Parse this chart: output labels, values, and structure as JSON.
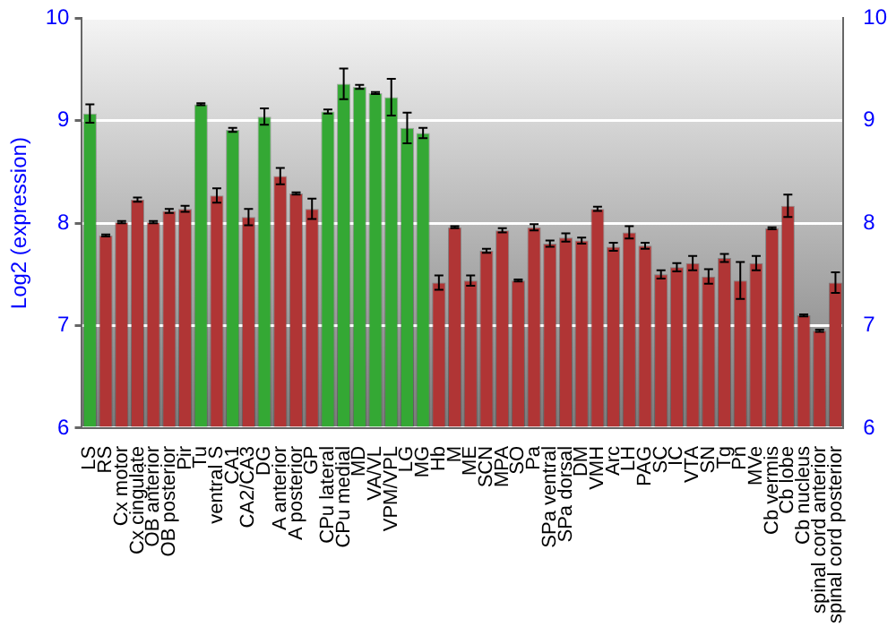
{
  "chart_data": {
    "type": "bar",
    "ylabel": "Log2 (expression)",
    "categories": [
      "LS",
      "RS",
      "Cx motor",
      "Cx cingulate",
      "OB anterior",
      "OB posterior",
      "Pir",
      "Tu",
      "ventral S",
      "CA1",
      "CA2/CA3",
      "DG",
      "A anterior",
      "A posterior",
      "GP",
      "CPu lateral",
      "CPu medial",
      "MD",
      "VA/VL",
      "VPM/VPL",
      "LG",
      "MG",
      "Hb",
      "M",
      "ME",
      "SCN",
      "MPA",
      "SO",
      "Pa",
      "SPa ventral",
      "SPa dorsal",
      "DM",
      "VMH",
      "Arc",
      "LH",
      "PAG",
      "SC",
      "IC",
      "VTA",
      "SN",
      "Tg",
      "Pn",
      "MVe",
      "Cb vermis",
      "Cb lobe",
      "Cb nucleus",
      "spinal cord anterior",
      "spinal cord posterior"
    ],
    "values": [
      9.07,
      7.88,
      8.01,
      8.23,
      8.01,
      8.12,
      8.14,
      9.16,
      8.27,
      8.91,
      8.06,
      9.04,
      8.46,
      8.29,
      8.14,
      9.09,
      9.36,
      9.33,
      9.27,
      9.23,
      8.93,
      8.88,
      7.42,
      7.96,
      7.44,
      7.73,
      7.93,
      7.44,
      7.96,
      7.8,
      7.86,
      7.83,
      8.14,
      7.77,
      7.91,
      7.78,
      7.5,
      7.57,
      7.61,
      7.48,
      7.66,
      7.44,
      7.61,
      7.95,
      8.17,
      7.1,
      6.95,
      7.42
    ],
    "errors": [
      0.09,
      0.01,
      0.01,
      0.02,
      0.01,
      0.02,
      0.03,
      0.01,
      0.07,
      0.02,
      0.08,
      0.08,
      0.08,
      0.01,
      0.1,
      0.02,
      0.15,
      0.02,
      0.01,
      0.18,
      0.15,
      0.05,
      0.07,
      0.01,
      0.05,
      0.02,
      0.02,
      0.01,
      0.03,
      0.03,
      0.04,
      0.03,
      0.02,
      0.04,
      0.06,
      0.03,
      0.04,
      0.04,
      0.07,
      0.07,
      0.04,
      0.18,
      0.07,
      0.01,
      0.11,
      0.01,
      0.01,
      0.1
    ],
    "colors": [
      "#34a834",
      "#b03535",
      "#b03535",
      "#b03535",
      "#b03535",
      "#b03535",
      "#b03535",
      "#34a834",
      "#b03535",
      "#34a834",
      "#b03535",
      "#34a834",
      "#b03535",
      "#b03535",
      "#b03535",
      "#34a834",
      "#34a834",
      "#34a834",
      "#34a834",
      "#34a834",
      "#34a834",
      "#34a834",
      "#b03535",
      "#b03535",
      "#b03535",
      "#b03535",
      "#b03535",
      "#b03535",
      "#b03535",
      "#b03535",
      "#b03535",
      "#b03535",
      "#b03535",
      "#b03535",
      "#b03535",
      "#b03535",
      "#b03535",
      "#b03535",
      "#b03535",
      "#b03535",
      "#b03535",
      "#b03535",
      "#b03535",
      "#b03535",
      "#b03535",
      "#b03535",
      "#b03535",
      "#b03535"
    ],
    "ylim": [
      6,
      10
    ],
    "yticks": [
      6,
      7,
      8,
      9,
      10
    ],
    "y2lim": [
      6,
      10
    ],
    "y2ticks": [
      6,
      7,
      8,
      9,
      10
    ],
    "grid": "y",
    "legend": false
  }
}
